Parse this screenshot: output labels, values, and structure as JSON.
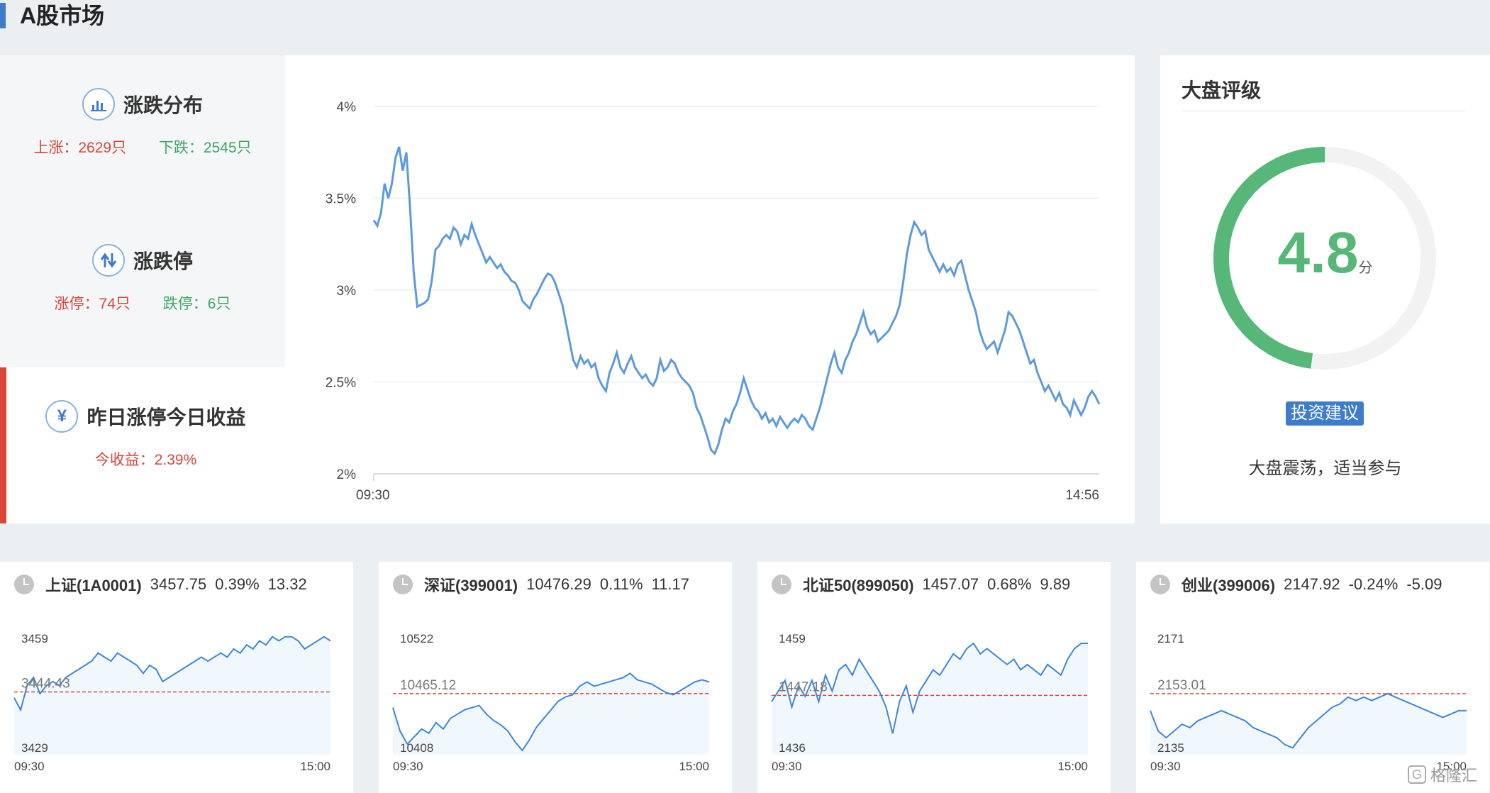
{
  "header": {
    "title": "A股市场"
  },
  "distribution": {
    "title": "涨跌分布",
    "up_label": "上涨：2629只",
    "down_label": "下跌：2545只"
  },
  "limits": {
    "title": "涨跌停",
    "up_label": "涨停：74只",
    "down_label": "跌停：6只"
  },
  "yesterday": {
    "title": "昨日涨停今日收益",
    "return_label": "今收益：2.39%"
  },
  "rating": {
    "title": "大盘评级",
    "score": "4.8",
    "score_value": 4.8,
    "score_max": 10,
    "unit": "分",
    "advice_button": "投资建议",
    "advice_text": "大盘震荡，适当参与"
  },
  "chart_data": [
    {
      "type": "line",
      "y_ticks": [
        "4%",
        "3.5%",
        "3%",
        "2.5%",
        "2%"
      ],
      "ylim": [
        2,
        4
      ],
      "x_start_label": "09:30",
      "x_end_label": "14:56",
      "color": "#5b9ae0",
      "values": [
        3.38,
        3.35,
        3.42,
        3.58,
        3.5,
        3.58,
        3.72,
        3.78,
        3.65,
        3.75,
        3.45,
        3.1,
        2.91,
        2.92,
        2.93,
        2.95,
        3.05,
        3.22,
        3.24,
        3.28,
        3.3,
        3.28,
        3.34,
        3.32,
        3.25,
        3.3,
        3.28,
        3.36,
        3.3,
        3.25,
        3.2,
        3.15,
        3.18,
        3.15,
        3.12,
        3.14,
        3.1,
        3.08,
        3.05,
        3.04,
        3.0,
        2.94,
        2.92,
        2.9,
        2.95,
        2.98,
        3.02,
        3.06,
        3.09,
        3.08,
        3.04,
        2.98,
        2.92,
        2.82,
        2.72,
        2.62,
        2.58,
        2.64,
        2.6,
        2.62,
        2.58,
        2.6,
        2.52,
        2.48,
        2.45,
        2.55,
        2.6,
        2.66,
        2.58,
        2.55,
        2.6,
        2.64,
        2.58,
        2.55,
        2.52,
        2.54,
        2.5,
        2.48,
        2.52,
        2.62,
        2.56,
        2.58,
        2.62,
        2.6,
        2.55,
        2.52,
        2.5,
        2.48,
        2.44,
        2.36,
        2.32,
        2.26,
        2.2,
        2.13,
        2.11,
        2.16,
        2.24,
        2.3,
        2.28,
        2.34,
        2.38,
        2.44,
        2.52,
        2.46,
        2.4,
        2.36,
        2.34,
        2.3,
        2.33,
        2.28,
        2.3,
        2.26,
        2.31,
        2.28,
        2.25,
        2.28,
        2.3,
        2.28,
        2.32,
        2.3,
        2.26,
        2.24,
        2.3,
        2.36,
        2.44,
        2.52,
        2.6,
        2.66,
        2.58,
        2.55,
        2.62,
        2.66,
        2.72,
        2.76,
        2.82,
        2.88,
        2.8,
        2.76,
        2.78,
        2.72,
        2.74,
        2.76,
        2.78,
        2.82,
        2.86,
        2.92,
        3.05,
        3.2,
        3.3,
        3.37,
        3.34,
        3.3,
        3.32,
        3.22,
        3.18,
        3.14,
        3.1,
        3.14,
        3.1,
        3.12,
        3.08,
        3.14,
        3.16,
        3.08,
        3.0,
        2.94,
        2.88,
        2.78,
        2.72,
        2.68,
        2.7,
        2.72,
        2.66,
        2.72,
        2.78,
        2.88,
        2.86,
        2.82,
        2.78,
        2.72,
        2.66,
        2.6,
        2.62,
        2.55,
        2.5,
        2.45,
        2.48,
        2.44,
        2.4,
        2.44,
        2.38,
        2.36,
        2.32,
        2.4,
        2.36,
        2.32,
        2.36,
        2.42,
        2.45,
        2.42,
        2.38
      ]
    },
    {
      "type": "area",
      "name": "上证(1A0001)",
      "price": "3457.75",
      "pct": "0.39%",
      "change": "13.32",
      "y_max_label": "3459",
      "y_ref_label": "3444.43",
      "y_min_label": "3429",
      "ylim": [
        3429,
        3459
      ],
      "ref": 3444.43,
      "x_start_label": "09:30",
      "x_end_label": "15:00",
      "values": [
        3443,
        3440,
        3446,
        3448,
        3444,
        3446,
        3447,
        3446,
        3448,
        3449,
        3450,
        3451,
        3452,
        3454,
        3453,
        3452,
        3454,
        3453,
        3452,
        3451,
        3449,
        3451,
        3450,
        3447,
        3448,
        3449,
        3450,
        3451,
        3452,
        3453,
        3452,
        3453,
        3454,
        3453,
        3455,
        3454,
        3456,
        3455,
        3457,
        3456,
        3458,
        3457,
        3458,
        3458,
        3457,
        3455,
        3456,
        3457,
        3458,
        3457
      ]
    },
    {
      "type": "area",
      "name": "深证(399001)",
      "price": "10476.29",
      "pct": "0.11%",
      "change": "11.17",
      "y_max_label": "10522",
      "y_ref_label": "10465.12",
      "y_min_label": "10408",
      "ylim": [
        10408,
        10522
      ],
      "ref": 10465.12,
      "x_start_label": "09:30",
      "x_end_label": "15:00",
      "values": [
        10452,
        10430,
        10418,
        10425,
        10432,
        10428,
        10438,
        10432,
        10442,
        10446,
        10450,
        10452,
        10454,
        10446,
        10440,
        10436,
        10430,
        10420,
        10412,
        10422,
        10434,
        10442,
        10450,
        10458,
        10462,
        10464,
        10472,
        10476,
        10472,
        10474,
        10476,
        10478,
        10480,
        10484,
        10478,
        10476,
        10474,
        10470,
        10466,
        10464,
        10468,
        10472,
        10476,
        10478,
        10476
      ]
    },
    {
      "type": "area",
      "name": "北证50(899050)",
      "price": "1457.07",
      "pct": "0.68%",
      "change": "9.89",
      "y_max_label": "1459",
      "y_ref_label": "1447.18",
      "y_min_label": "1436",
      "ylim": [
        1436,
        1459
      ],
      "ref": 1447.18,
      "x_start_label": "09:30",
      "x_end_label": "15:00",
      "values": [
        1446,
        1448,
        1450,
        1445,
        1449,
        1447,
        1450,
        1446,
        1451,
        1448,
        1452,
        1453,
        1451,
        1454,
        1452,
        1450,
        1448,
        1445,
        1440,
        1446,
        1449,
        1444,
        1448,
        1450,
        1452,
        1451,
        1453,
        1455,
        1454,
        1456,
        1457,
        1455,
        1456,
        1455,
        1454,
        1453,
        1454,
        1452,
        1453,
        1452,
        1451,
        1453,
        1452,
        1451,
        1454,
        1456,
        1457,
        1457
      ]
    },
    {
      "type": "area",
      "name": "创业(399006)",
      "price": "2147.92",
      "pct": "-0.24%",
      "change": "-5.09",
      "y_max_label": "2171",
      "y_ref_label": "2153.01",
      "y_min_label": "2135",
      "ylim": [
        2135,
        2171
      ],
      "ref": 2153.01,
      "x_start_label": "09:30",
      "x_end_label": "15:00",
      "values": [
        2148,
        2142,
        2140,
        2142,
        2144,
        2143,
        2145,
        2146,
        2147,
        2148,
        2147,
        2146,
        2145,
        2143,
        2142,
        2141,
        2140,
        2138,
        2137,
        2140,
        2143,
        2145,
        2147,
        2149,
        2150,
        2152,
        2151,
        2152,
        2151,
        2152,
        2153,
        2152,
        2151,
        2150,
        2149,
        2148,
        2147,
        2146,
        2147,
        2148,
        2148
      ]
    }
  ],
  "watermark": {
    "text": "格隆汇"
  }
}
